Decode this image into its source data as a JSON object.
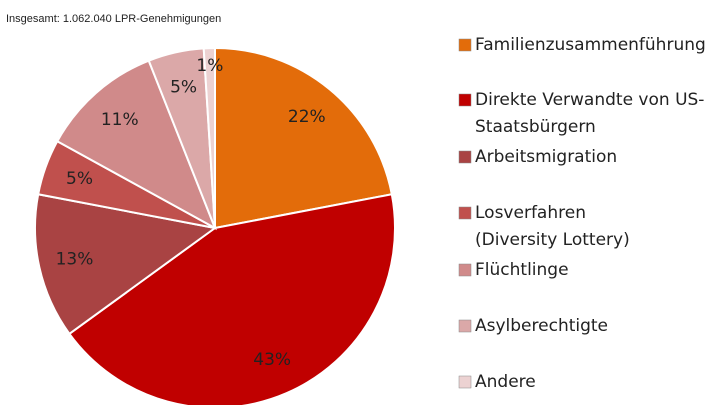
{
  "chart_data": {
    "type": "pie",
    "title": "Insgesamt: 1.062.040 LPR-Genehmigungen",
    "categories": [
      "Familienzusammenführung",
      "Direkte Verwandte von US-\nStaatsbürgern",
      "Arbeitsmigration",
      "Losverfahren\n(Diversity Lottery)",
      "Flüchtlinge",
      "Asylberechtigte",
      "Andere"
    ],
    "values": [
      22,
      43,
      13,
      5,
      11,
      5,
      1
    ],
    "value_labels": [
      "22%",
      "43%",
      "13%",
      "5%",
      "11%",
      "5%",
      "1%"
    ],
    "colors": [
      "#e36c0a",
      "#c00000",
      "#a94343",
      "#c0504d",
      "#d08a8a",
      "#dba8a8",
      "#ecd2d2"
    ],
    "legend": "right"
  }
}
